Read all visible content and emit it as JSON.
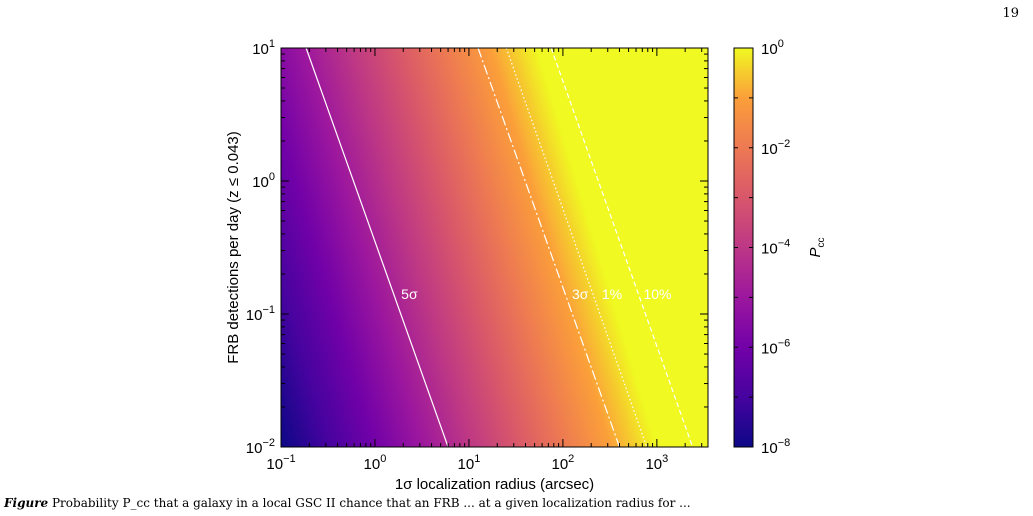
{
  "page": {
    "number": "19"
  },
  "caption": {
    "label": "Figure",
    "text": "Probability P_cc that a galaxy in a local GSC II chance that an FRB ... at a given localization radius for ..."
  },
  "chart_data": {
    "type": "heatmap",
    "title": "",
    "xlabel_sigma": "1σ",
    "xlabel": " localization radius (arcsec)",
    "ylabel": "FRB detections per day (z ≤ 0.043)",
    "colorbar_label_main": "P",
    "colorbar_label_sub": "cc",
    "x_scale": "log",
    "y_scale": "log",
    "x_range": [
      0.1,
      3500
    ],
    "y_range": [
      0.01,
      10
    ],
    "colorbar_range": [
      1e-08,
      1
    ],
    "colormap": "plasma",
    "x_ticks": [
      {
        "value": 0.1,
        "base": "10",
        "exp": "−1"
      },
      {
        "value": 1,
        "base": "10",
        "exp": "0"
      },
      {
        "value": 10,
        "base": "10",
        "exp": "1"
      },
      {
        "value": 100,
        "base": "10",
        "exp": "2"
      },
      {
        "value": 1000,
        "base": "10",
        "exp": "3"
      }
    ],
    "y_ticks": [
      {
        "value": 0.01,
        "base": "10",
        "exp": "−2"
      },
      {
        "value": 0.1,
        "base": "10",
        "exp": "−1"
      },
      {
        "value": 1,
        "base": "10",
        "exp": "0"
      },
      {
        "value": 10,
        "base": "10",
        "exp": "1"
      }
    ],
    "colorbar_ticks": [
      {
        "value": 1,
        "base": "10",
        "exp": "0"
      },
      {
        "value": 0.01,
        "base": "10",
        "exp": "−2"
      },
      {
        "value": 0.0001,
        "base": "10",
        "exp": "−4"
      },
      {
        "value": 1e-06,
        "base": "10",
        "exp": "−6"
      },
      {
        "value": 1e-08,
        "base": "10",
        "exp": "−8"
      }
    ],
    "contours": [
      {
        "label": "5σ",
        "style": "solid",
        "points": [
          [
            0.185,
            10
          ],
          [
            6.0,
            0.01
          ]
        ],
        "label_at": [
          1.9,
          0.13
        ]
      },
      {
        "label": "3σ",
        "style": "dashdot",
        "points": [
          [
            12.5,
            10
          ],
          [
            400,
            0.01
          ]
        ],
        "label_at": [
          125,
          0.13
        ]
      },
      {
        "label": "1%",
        "style": "dotted",
        "points": [
          [
            25,
            10
          ],
          [
            780,
            0.01
          ]
        ],
        "label_at": [
          260,
          0.13
        ]
      },
      {
        "label": "10%",
        "style": "dashed",
        "points": [
          [
            75,
            10
          ],
          [
            2400,
            0.01
          ]
        ],
        "label_at": [
          720,
          0.13
        ]
      }
    ]
  }
}
